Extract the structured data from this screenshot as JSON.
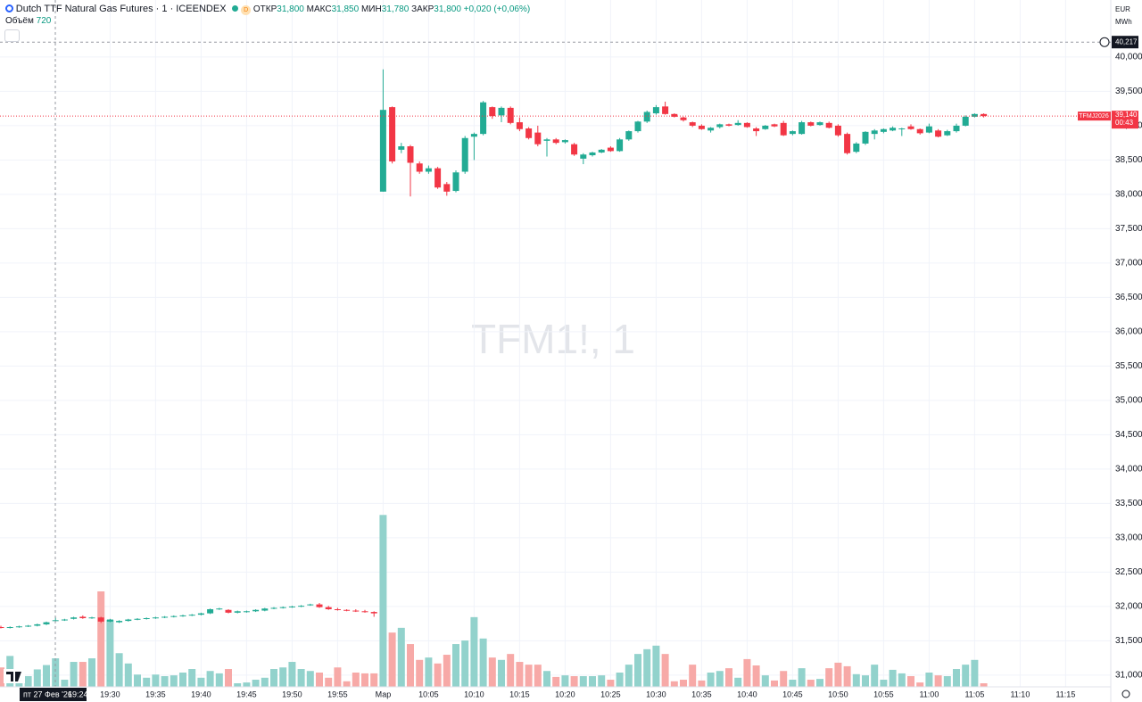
{
  "header": {
    "symbol": "Dutch TTF Natural Gas Futures · 1 · ICEENDEX",
    "badge": "D",
    "open_label": "ОТКР",
    "open": "31,800",
    "high_label": "МАКС",
    "high": "31,850",
    "low_label": "МИН",
    "low": "31,780",
    "close_label": "ЗАКР",
    "close": "31,800",
    "change": "+0,020 (+0,06%)",
    "volume_label": "Объём",
    "currency": "EUR",
    "unit": "MWh"
  },
  "chart_data": {
    "type": "candlestick",
    "watermark": "TFM1!, 1",
    "categories": [
      null,
      null,
      null,
      null,
      null,
      null,
      null,
      null,
      null,
      null,
      null,
      null,
      "19:30",
      null,
      null,
      null,
      null,
      "19:35",
      null,
      null,
      null,
      null,
      "19:40",
      null,
      null,
      null,
      null,
      "19:45",
      null,
      null,
      null,
      null,
      "19:50",
      null,
      null,
      null,
      null,
      "19:55",
      null,
      null,
      null,
      null,
      "Мар",
      null,
      null,
      null,
      null,
      "10:05",
      null,
      null,
      null,
      null,
      "10:10",
      null,
      null,
      null,
      null,
      "10:15",
      null,
      null,
      null,
      null,
      "10:20",
      null,
      null,
      null,
      null,
      "10:25",
      null,
      null,
      null,
      null,
      "10:30",
      null,
      null,
      null,
      null,
      "10:35",
      null,
      null,
      null,
      null,
      "10:40",
      null,
      null,
      null,
      null,
      "10:45",
      null,
      null,
      null,
      null,
      "10:50",
      null,
      null,
      null,
      null,
      "10:55",
      null,
      null,
      null,
      null,
      "11:00",
      null,
      null,
      null,
      null,
      "11:05",
      null,
      null,
      null,
      null,
      "11:10",
      null,
      null,
      null,
      null,
      "11:15",
      null,
      null
    ],
    "open": [
      31.7,
      31.69,
      31.7,
      31.71,
      31.72,
      31.74,
      31.8,
      31.8,
      31.82,
      31.85,
      31.83,
      31.84,
      31.78,
      31.77,
      31.79,
      31.81,
      31.82,
      31.83,
      31.84,
      31.85,
      31.86,
      31.87,
      31.88,
      31.9,
      31.96,
      31.95,
      31.91,
      31.92,
      31.93,
      31.94,
      31.97,
      31.98,
      31.99,
      32.0,
      32.02,
      32.03,
      31.99,
      31.96,
      31.95,
      31.94,
      31.93,
      31.92,
      38.04,
      39.27,
      38.65,
      38.7,
      38.45,
      38.33,
      38.38,
      38.15,
      38.05,
      38.33,
      38.84,
      38.88,
      39.27,
      39.15,
      39.26,
      39.05,
      38.96,
      38.9,
      38.78,
      38.8,
      38.76,
      38.73,
      38.52,
      38.57,
      38.61,
      38.68,
      38.63,
      38.8,
      38.92,
      39.06,
      39.18,
      39.28,
      39.17,
      39.12,
      39.05,
      39.0,
      38.93,
      38.98,
      39.02,
      39.01,
      39.04,
      38.96,
      38.95,
      39.02,
      39.04,
      38.88,
      38.88,
      39.05,
      39.01,
      39.04,
      39.0,
      38.88,
      38.62,
      38.74,
      38.88,
      38.91,
      38.93,
      38.95,
      38.99,
      38.95,
      38.9,
      38.93,
      38.86,
      38.92,
      39.0,
      39.13,
      39.17,
      null,
      null,
      null,
      null,
      null,
      null,
      null,
      null,
      null,
      null,
      null
    ],
    "high": [
      31.72,
      31.71,
      31.72,
      31.73,
      31.75,
      31.78,
      31.85,
      31.82,
      31.85,
      31.87,
      31.85,
      31.85,
      31.82,
      31.8,
      31.82,
      31.83,
      31.84,
      31.85,
      31.86,
      31.87,
      31.88,
      31.89,
      31.91,
      31.97,
      31.98,
      31.96,
      31.94,
      31.94,
      31.96,
      31.98,
      31.99,
      32.0,
      32.01,
      32.02,
      32.04,
      32.05,
      32.01,
      31.98,
      31.96,
      31.96,
      31.95,
      31.93,
      39.82,
      39.28,
      38.75,
      38.72,
      38.48,
      38.42,
      38.4,
      38.18,
      38.35,
      38.85,
      38.9,
      39.36,
      39.28,
      39.28,
      39.28,
      39.12,
      38.98,
      39.0,
      38.82,
      38.82,
      38.8,
      38.75,
      38.6,
      38.62,
      38.66,
      38.7,
      38.82,
      38.93,
      39.07,
      39.22,
      39.3,
      39.35,
      39.18,
      39.13,
      39.06,
      39.02,
      38.98,
      39.03,
      39.03,
      39.08,
      39.05,
      38.98,
      39.01,
      39.03,
      39.07,
      38.93,
      39.07,
      39.06,
      39.06,
      39.06,
      39.02,
      38.9,
      38.76,
      38.92,
      38.95,
      38.96,
      38.99,
      38.97,
      39.02,
      38.96,
      39.03,
      38.95,
      38.94,
      39.03,
      39.15,
      39.18,
      39.18,
      null,
      null,
      null,
      null,
      null,
      null,
      null,
      null,
      null,
      null,
      null
    ],
    "low": [
      31.68,
      31.68,
      31.69,
      31.7,
      31.71,
      31.73,
      31.78,
      31.79,
      31.81,
      31.82,
      31.82,
      31.76,
      31.77,
      31.76,
      31.78,
      31.8,
      31.81,
      31.82,
      31.83,
      31.84,
      31.85,
      31.86,
      31.87,
      31.89,
      31.95,
      31.9,
      31.9,
      31.91,
      31.92,
      31.93,
      31.96,
      31.97,
      31.98,
      31.99,
      32.01,
      31.98,
      31.95,
      31.94,
      31.93,
      31.92,
      31.91,
      31.85,
      38.04,
      38.45,
      38.6,
      37.97,
      38.3,
      38.3,
      38.08,
      37.98,
      38.03,
      38.3,
      38.5,
      38.86,
      39.1,
      39.05,
      39.02,
      38.92,
      38.8,
      38.7,
      38.55,
      38.73,
      38.74,
      38.56,
      38.44,
      38.55,
      38.6,
      38.62,
      38.62,
      38.78,
      38.9,
      39.04,
      39.16,
      39.16,
      39.12,
      39.06,
      38.98,
      38.94,
      38.9,
      38.96,
      38.99,
      39.0,
      38.97,
      38.85,
      38.94,
      38.98,
      38.85,
      38.86,
      38.87,
      38.99,
      39.0,
      38.96,
      38.84,
      38.58,
      38.6,
      38.72,
      38.8,
      38.89,
      38.92,
      38.85,
      38.94,
      38.87,
      38.89,
      38.83,
      38.85,
      38.9,
      38.99,
      39.12,
      39.12,
      null,
      null,
      null,
      null,
      null,
      null,
      null,
      null,
      null,
      null,
      null
    ],
    "close": [
      31.69,
      31.7,
      31.71,
      31.72,
      31.74,
      31.77,
      31.8,
      31.81,
      31.84,
      31.83,
      31.84,
      31.78,
      31.81,
      31.79,
      31.81,
      31.82,
      31.83,
      31.84,
      31.85,
      31.86,
      31.87,
      31.88,
      31.9,
      31.96,
      31.97,
      31.91,
      31.93,
      31.93,
      31.95,
      31.97,
      31.98,
      31.99,
      32.0,
      32.01,
      32.03,
      31.99,
      31.96,
      31.95,
      31.94,
      31.93,
      31.92,
      31.9,
      39.23,
      38.48,
      38.7,
      38.46,
      38.33,
      38.38,
      38.1,
      38.04,
      38.32,
      38.82,
      38.88,
      39.34,
      39.14,
      39.26,
      39.04,
      38.95,
      38.82,
      38.73,
      38.8,
      38.75,
      38.79,
      38.58,
      38.58,
      38.61,
      38.65,
      38.63,
      38.8,
      38.92,
      39.06,
      39.2,
      39.27,
      39.17,
      39.13,
      39.08,
      39.0,
      38.95,
      38.97,
      39.02,
      39.0,
      39.04,
      38.98,
      38.92,
      39.0,
      38.99,
      38.86,
      38.92,
      39.05,
      39.0,
      39.05,
      38.97,
      38.86,
      38.6,
      38.74,
      38.91,
      38.93,
      38.95,
      38.97,
      38.96,
      38.95,
      38.89,
      38.99,
      38.84,
      38.92,
      39.0,
      39.13,
      39.17,
      39.14,
      null,
      null,
      null,
      null,
      null,
      null,
      null,
      null,
      null,
      null,
      null
    ],
    "volume": [
      490,
      780,
      270,
      270,
      440,
      550,
      720,
      180,
      630,
      630,
      720,
      2410,
      1690,
      850,
      590,
      310,
      230,
      310,
      270,
      290,
      360,
      450,
      230,
      400,
      340,
      450,
      90,
      110,
      180,
      230,
      450,
      490,
      630,
      450,
      400,
      360,
      230,
      490,
      140,
      360,
      340,
      340,
      4340,
      1370,
      1490,
      1080,
      680,
      740,
      590,
      810,
      1080,
      1170,
      1760,
      1220,
      740,
      680,
      830,
      630,
      560,
      560,
      400,
      250,
      290,
      270,
      270,
      270,
      290,
      180,
      360,
      560,
      830,
      950,
      1040,
      830,
      140,
      180,
      560,
      160,
      360,
      400,
      470,
      230,
      700,
      540,
      290,
      160,
      400,
      180,
      470,
      180,
      200,
      470,
      610,
      520,
      320,
      290,
      560,
      180,
      430,
      340,
      270,
      110,
      360,
      290,
      270,
      450,
      560,
      680,
      90,
      null,
      null,
      null,
      null,
      null,
      null,
      null,
      null,
      null,
      null,
      null
    ],
    "volume_lim": [
      0,
      5000
    ],
    "ylim": [
      30.83,
      40.83
    ],
    "yticks": [
      {
        "value": 40,
        "label": "40,000"
      },
      {
        "value": 39.5,
        "label": "39,500"
      },
      {
        "value": 39,
        "label": "39,000"
      },
      {
        "value": 38.5,
        "label": "38,500"
      },
      {
        "value": 38,
        "label": "38,000"
      },
      {
        "value": 37.5,
        "label": "37,500"
      },
      {
        "value": 37,
        "label": "37,000"
      },
      {
        "value": 36.5,
        "label": "36,500"
      },
      {
        "value": 36,
        "label": "36,000"
      },
      {
        "value": 35.5,
        "label": "35,500"
      },
      {
        "value": 35,
        "label": "35,000"
      },
      {
        "value": 34.5,
        "label": "34,500"
      },
      {
        "value": 34,
        "label": "34,000"
      },
      {
        "value": 33.5,
        "label": "33,500"
      },
      {
        "value": 33,
        "label": "33,000"
      },
      {
        "value": 32.5,
        "label": "32,500"
      },
      {
        "value": 32,
        "label": "32,000"
      },
      {
        "value": 31.5,
        "label": "31,500"
      },
      {
        "value": 31,
        "label": "31,000"
      }
    ],
    "grid": true,
    "up_color": "#22ab94",
    "down_color": "#f23645",
    "volume_up_color": "#92d2cc",
    "volume_down_color": "#f7a9a7",
    "last_price": {
      "value": 39.14,
      "label": "39,140",
      "countdown": "00:43",
      "tag": "TFMJ2026",
      "color": "#f23645"
    },
    "crosshair": {
      "value": 40.217,
      "label": "40,217",
      "date": "пт 27 Фев '26",
      "time": "19:24"
    }
  }
}
